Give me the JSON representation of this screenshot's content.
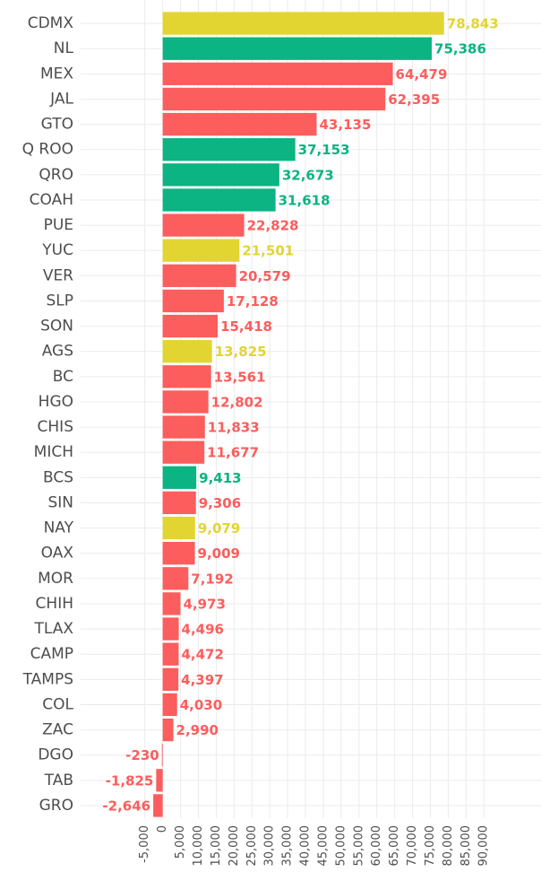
{
  "chart_data": {
    "type": "hbar",
    "categories": [
      "CDMX",
      "NL",
      "MEX",
      "JAL",
      "GTO",
      "Q ROO",
      "QRO",
      "COAH",
      "PUE",
      "YUC",
      "VER",
      "SLP",
      "SON",
      "AGS",
      "BC",
      "HGO",
      "CHIS",
      "MICH",
      "BCS",
      "SIN",
      "NAY",
      "OAX",
      "MOR",
      "CHIH",
      "TLAX",
      "CAMP",
      "TAMPS",
      "COL",
      "ZAC",
      "DGO",
      "TAB",
      "GRO"
    ],
    "values": [
      78843,
      75386,
      64479,
      62395,
      43135,
      37153,
      32673,
      31618,
      22828,
      21501,
      20579,
      17128,
      15418,
      13825,
      13561,
      12802,
      11833,
      11677,
      9413,
      9306,
      9079,
      9009,
      7192,
      4973,
      4496,
      4472,
      4397,
      4030,
      2990,
      -230,
      -1825,
      -2646
    ],
    "value_labels": [
      "78,843",
      "75,386",
      "64,479",
      "62,395",
      "43,135",
      "37,153",
      "32,673",
      "31,618",
      "22,828",
      "21,501",
      "20,579",
      "17,128",
      "15,418",
      "13,825",
      "13,561",
      "12,802",
      "11,833",
      "11,677",
      "9,413",
      "9,306",
      "9,079",
      "9,009",
      "7,192",
      "4,973",
      "4,496",
      "4,472",
      "4,397",
      "4,030",
      "2,990",
      "-230",
      "-1,825",
      "-2,646"
    ],
    "colors": [
      "#e2d532",
      "#0cb383",
      "#fc5d5d",
      "#fc5d5d",
      "#fc5d5d",
      "#0cb383",
      "#0cb383",
      "#0cb383",
      "#fc5d5d",
      "#e2d532",
      "#fc5d5d",
      "#fc5d5d",
      "#fc5d5d",
      "#e2d532",
      "#fc5d5d",
      "#fc5d5d",
      "#fc5d5d",
      "#fc5d5d",
      "#0cb383",
      "#fc5d5d",
      "#e2d532",
      "#fc5d5d",
      "#fc5d5d",
      "#fc5d5d",
      "#fc5d5d",
      "#fc5d5d",
      "#fc5d5d",
      "#fc5d5d",
      "#fc5d5d",
      "#fc5d5d",
      "#fc5d5d",
      "#fc5d5d"
    ],
    "xlim": [
      -23000,
      106000
    ],
    "xticks": [
      {
        "value": -5000,
        "label": "-5,000"
      },
      0,
      {
        "value": 5000,
        "label": "5,000"
      },
      {
        "value": 10000,
        "label": "10,000"
      },
      {
        "value": 15000,
        "label": "15,000"
      },
      {
        "value": 20000,
        "label": "20,000"
      },
      {
        "value": 25000,
        "label": "25,000"
      },
      {
        "value": 30000,
        "label": "30,000"
      },
      {
        "value": 35000,
        "label": "35,000"
      },
      {
        "value": 40000,
        "label": "40,000"
      },
      {
        "value": 45000,
        "label": "45,000"
      },
      {
        "value": 50000,
        "label": "50,000"
      },
      {
        "value": 55000,
        "label": "55,000"
      },
      {
        "value": 60000,
        "label": "60,000"
      },
      {
        "value": 65000,
        "label": "65,000"
      },
      {
        "value": 70000,
        "label": "70,000"
      },
      {
        "value": 75000,
        "label": "75,000"
      },
      {
        "value": 80000,
        "label": "80,000"
      },
      {
        "value": 85000,
        "label": "85,000"
      },
      {
        "value": 90000,
        "label": "90,000"
      }
    ],
    "grid": true
  }
}
